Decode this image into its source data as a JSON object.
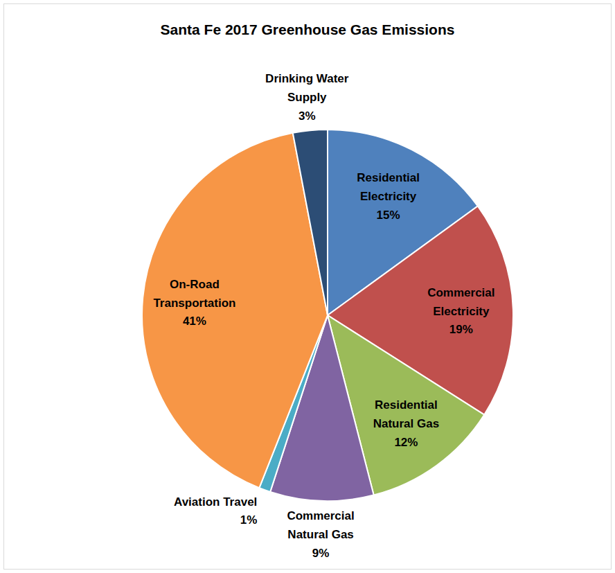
{
  "chart_data": {
    "type": "pie",
    "title": "Santa Fe 2017 Greenhouse Gas Emissions",
    "categories": [
      "Residential Electricity",
      "Commercial Electricity",
      "Residential Natural Gas",
      "Commercial Natural Gas",
      "Aviation Travel",
      "On-Road Transportation",
      "Drinking Water Supply"
    ],
    "values": [
      15,
      19,
      12,
      9,
      1,
      41,
      3
    ],
    "value_labels": [
      "15%",
      "19%",
      "12%",
      "9%",
      "1%",
      "41%",
      "3%"
    ],
    "colors": [
      "#4f81bd",
      "#c0504d",
      "#9bbb59",
      "#8064a2",
      "#4bacc6",
      "#f79646",
      "#2c4d75"
    ],
    "data_labels": true
  }
}
